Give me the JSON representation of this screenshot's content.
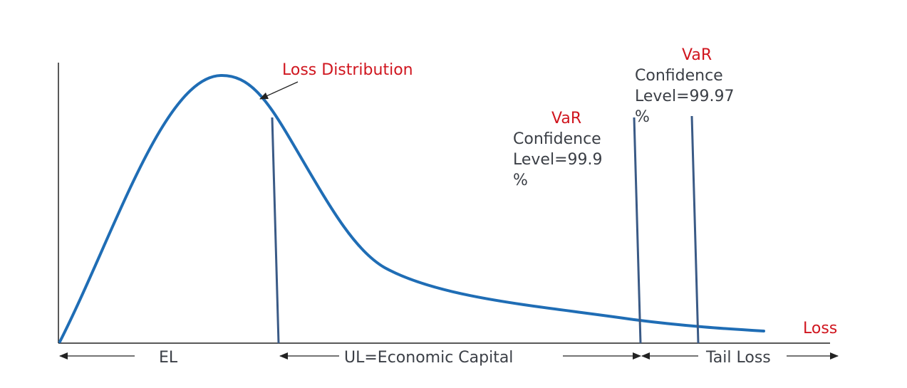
{
  "labels": {
    "loss_distribution": "Loss Distribution",
    "loss_axis": "Loss",
    "var_left_title": "VaR",
    "var_left_line1": "Confidence",
    "var_left_line2": "Level=99.9",
    "var_left_line3": "%",
    "var_right_title": "VaR",
    "var_right_line1": "Confidence",
    "var_right_line2": "Level=99.97",
    "var_right_line3": "%",
    "el": "EL",
    "ul": "UL=Economic Capital",
    "tail_loss": "Tail Loss"
  },
  "colors": {
    "curve": "#1f6db5",
    "marker_lines": "#3a5a86",
    "red_text": "#d0161f",
    "dark_text": "#3b3f46",
    "axis": "#222222"
  }
}
